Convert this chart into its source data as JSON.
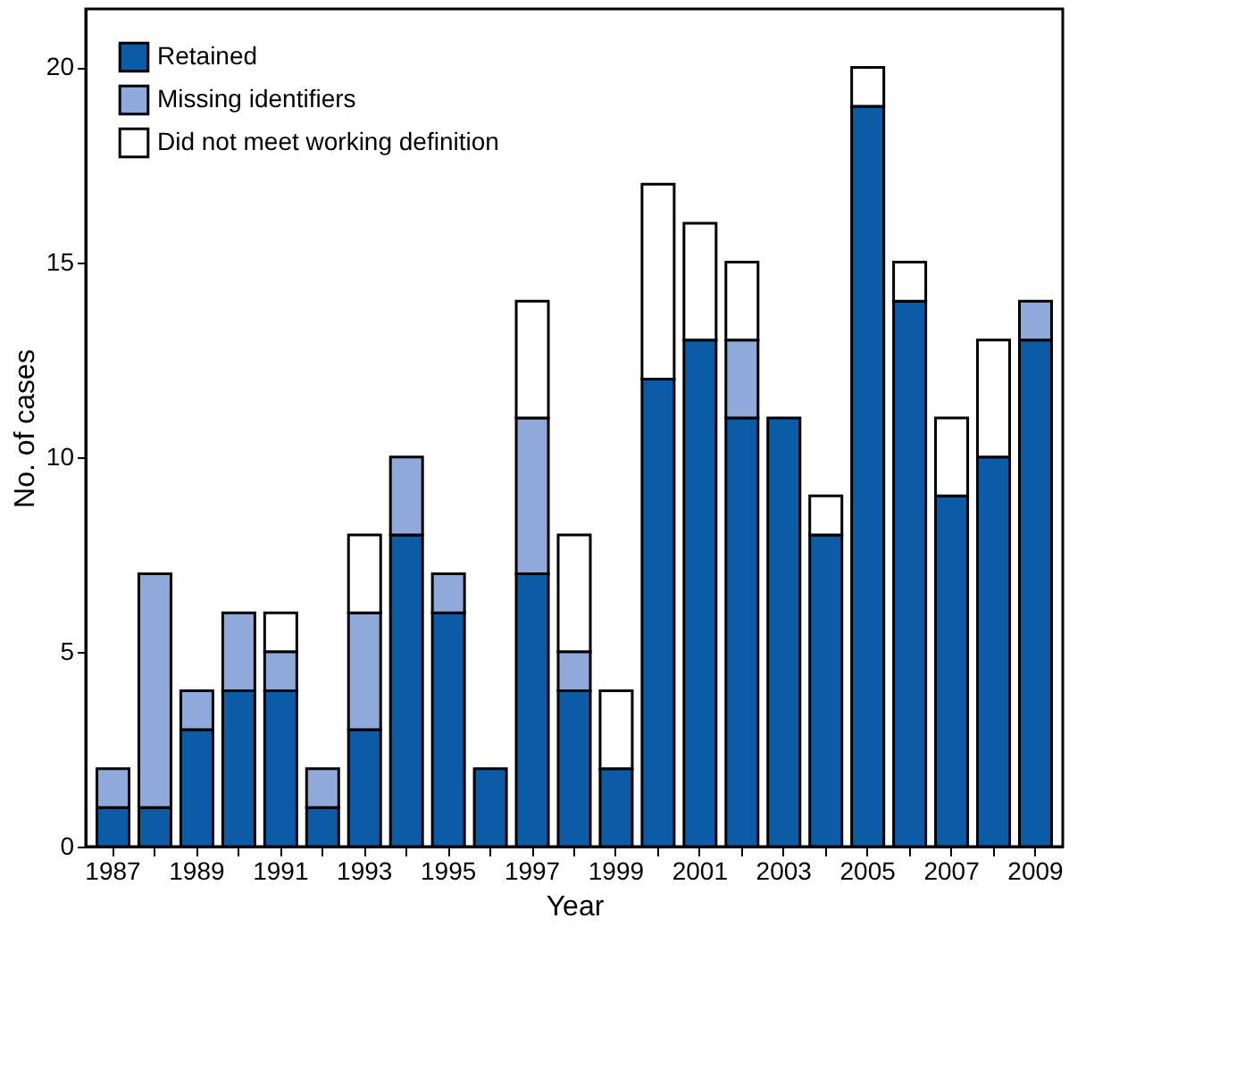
{
  "chart_data": {
    "type": "bar",
    "stacked": true,
    "xlabel": "Year",
    "ylabel": "No. of cases",
    "categories": [
      "1987",
      null,
      "1989",
      null,
      "1991",
      null,
      "1993",
      null,
      "1995",
      null,
      "1997",
      null,
      "1999",
      null,
      "2001",
      null,
      "2003",
      null,
      "2005",
      null,
      "2007",
      null,
      "2009"
    ],
    "series": [
      {
        "name": "Retained",
        "color": "#0b5ba6",
        "values": [
          1,
          1,
          3,
          4,
          4,
          1,
          3,
          8,
          6,
          2,
          7,
          4,
          2,
          12,
          13,
          11,
          11,
          8,
          19,
          14,
          9,
          10,
          13
        ]
      },
      {
        "name": "Missing identifiers",
        "color": "#8fa9da",
        "values": [
          1,
          6,
          1,
          2,
          1,
          1,
          3,
          2,
          1,
          null,
          4,
          1,
          null,
          null,
          null,
          2,
          null,
          null,
          null,
          null,
          null,
          null,
          1
        ]
      },
      {
        "name": "Did not meet working definition",
        "color": "#ffffff",
        "values": [
          null,
          null,
          null,
          null,
          1,
          null,
          2,
          null,
          null,
          null,
          3,
          3,
          2,
          5,
          3,
          2,
          null,
          1,
          1,
          1,
          2,
          3,
          null
        ]
      }
    ],
    "ylim": [
      0,
      21.5
    ],
    "yticks": [
      0,
      5,
      10,
      15,
      20
    ],
    "grid": false,
    "legend": "top left"
  }
}
